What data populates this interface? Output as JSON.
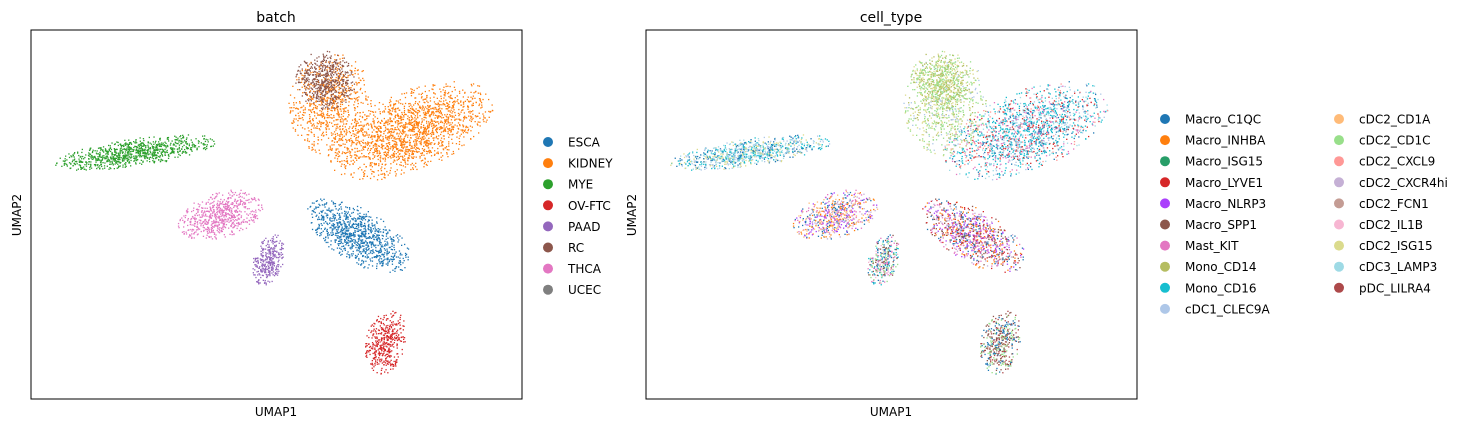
{
  "chart_data": [
    {
      "type": "scatter",
      "title": "batch",
      "xlabel": "UMAP1",
      "ylabel": "UMAP2",
      "xticks": "none",
      "yticks": "none",
      "legend_position": "right",
      "legend": [
        {
          "label": "ESCA",
          "color": "#1f77b4"
        },
        {
          "label": "KIDNEY",
          "color": "#ff7f0e"
        },
        {
          "label": "MYE",
          "color": "#2ca02c"
        },
        {
          "label": "OV-FTC",
          "color": "#d62728"
        },
        {
          "label": "PAAD",
          "color": "#9467bd"
        },
        {
          "label": "RC",
          "color": "#8c564b"
        },
        {
          "label": "THCA",
          "color": "#e377c2"
        },
        {
          "label": "UCEC",
          "color": "#7f7f7f"
        }
      ]
    },
    {
      "type": "scatter",
      "title": "cell_type",
      "xlabel": "UMAP1",
      "ylabel": "UMAP2",
      "xticks": "none",
      "yticks": "none",
      "legend_position": "right",
      "legend_columns": 2,
      "legend": [
        {
          "label": "Macro_C1QC",
          "color": "#1f77b4"
        },
        {
          "label": "Macro_INHBA",
          "color": "#ff7f0e"
        },
        {
          "label": "Macro_ISG15",
          "color": "#279e68"
        },
        {
          "label": "Macro_LYVE1",
          "color": "#d62728"
        },
        {
          "label": "Macro_NLRP3",
          "color": "#aa40fc"
        },
        {
          "label": "Macro_SPP1",
          "color": "#8c564b"
        },
        {
          "label": "Mast_KIT",
          "color": "#e377c2"
        },
        {
          "label": "Mono_CD14",
          "color": "#b5bd61"
        },
        {
          "label": "Mono_CD16",
          "color": "#17becf"
        },
        {
          "label": "cDC1_CLEC9A",
          "color": "#aec7e8"
        },
        {
          "label": "cDC2_CD1A",
          "color": "#ffbb78"
        },
        {
          "label": "cDC2_CD1C",
          "color": "#98df8a"
        },
        {
          "label": "cDC2_CXCL9",
          "color": "#ff9896"
        },
        {
          "label": "cDC2_CXCR4hi",
          "color": "#c5b0d5"
        },
        {
          "label": "cDC2_FCN1",
          "color": "#c49c94"
        },
        {
          "label": "cDC2_IL1B",
          "color": "#f7b6d2"
        },
        {
          "label": "cDC2_ISG15",
          "color": "#dbdb8d"
        },
        {
          "label": "cDC3_LAMP3",
          "color": "#9edae5"
        },
        {
          "label": "pDC_LILRA4",
          "color": "#ad494a"
        }
      ]
    }
  ]
}
